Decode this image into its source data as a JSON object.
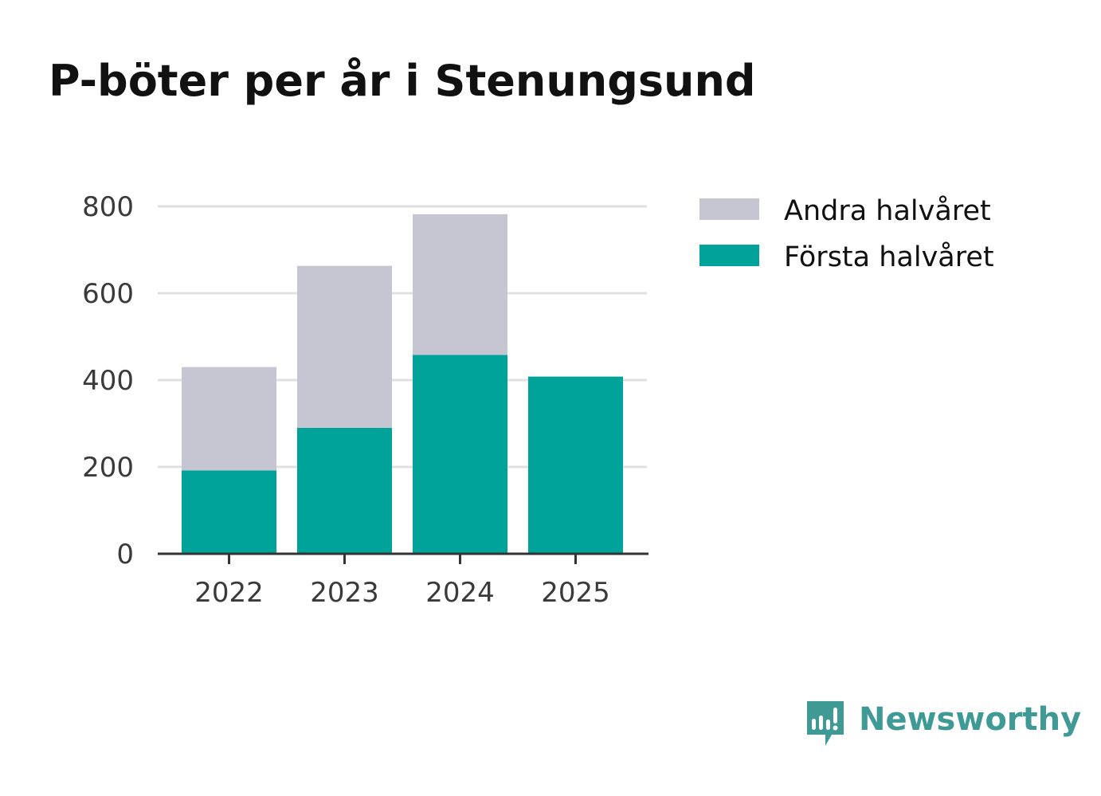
{
  "chart_data": {
    "type": "bar",
    "stacked": true,
    "title": "P-böter per år i Stenungsund",
    "xlabel": "",
    "ylabel": "",
    "categories": [
      "2022",
      "2023",
      "2024",
      "2025"
    ],
    "series": [
      {
        "name": "Första halvåret",
        "values": [
          192,
          290,
          458,
          408
        ],
        "color": "#00a39a"
      },
      {
        "name": "Andra halvåret",
        "values": [
          238,
          373,
          324,
          null
        ],
        "color": "#c6c6d2"
      }
    ],
    "ylim": [
      0,
      800
    ],
    "yticks": [
      0,
      200,
      400,
      600,
      800
    ],
    "grid": true,
    "legend": {
      "placement": "right",
      "entries": [
        "Andra halvåret",
        "Första halvåret"
      ]
    }
  },
  "branding": {
    "name": "Newsworthy",
    "icon": "newsworthy-logo-icon",
    "color": "#3f9994"
  }
}
